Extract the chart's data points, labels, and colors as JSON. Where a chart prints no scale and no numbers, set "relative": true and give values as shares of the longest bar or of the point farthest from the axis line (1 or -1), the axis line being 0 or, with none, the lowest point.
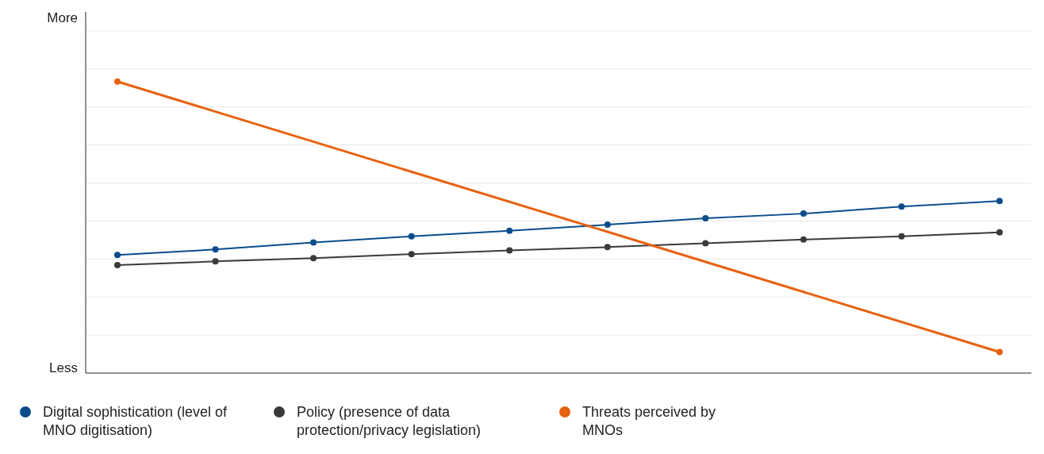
{
  "chart_data": {
    "type": "line",
    "relative": true,
    "categories": [
      null,
      null,
      null,
      null,
      null,
      null,
      null,
      null,
      null,
      null
    ],
    "series": [
      {
        "name": "Digital sophistication (level of MNO digitisation)",
        "color": "#0a4d8c",
        "values": [
          0.405,
          0.424,
          0.448,
          0.469,
          0.488,
          0.509,
          0.531,
          0.547,
          0.571,
          0.59
        ]
      },
      {
        "name": "Policy (presence of data protection/privacy legislation)",
        "color": "#3a3a3a",
        "values": [
          0.37,
          0.383,
          0.394,
          0.408,
          0.421,
          0.432,
          0.445,
          0.458,
          0.469,
          0.483
        ]
      },
      {
        "name": "Threats perceived by MNOs",
        "color": "#e8620f",
        "values": [
          1,
          null,
          null,
          null,
          null,
          null,
          null,
          null,
          null,
          0.072
        ]
      }
    ],
    "annotations": [
      "More",
      "Less"
    ],
    "grid": "y",
    "legend": "bottom",
    "marker": "circle"
  }
}
